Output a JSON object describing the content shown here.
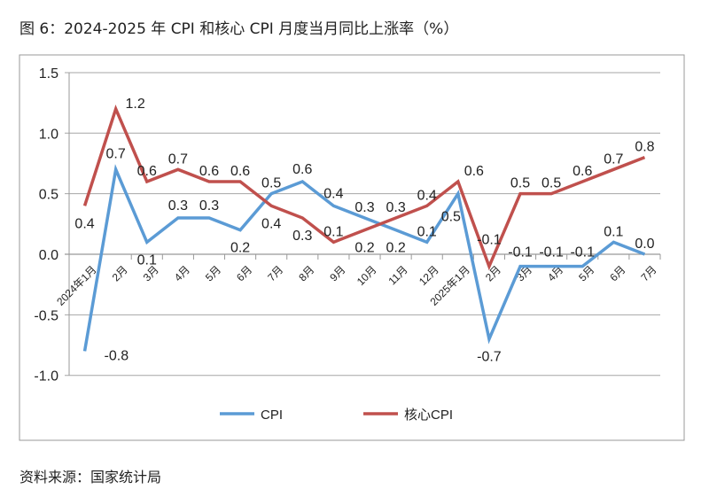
{
  "title": "图 6：2024-2025 年 CPI 和核心 CPI 月度当月同比上涨率（%）",
  "source": "资料来源：国家统计局",
  "chart_data": {
    "type": "line",
    "title": "图 6：2024-2025 年 CPI 和核心 CPI 月度当月同比上涨率（%）",
    "categories": [
      "2024年1月",
      "2月",
      "3月",
      "4月",
      "5月",
      "6月",
      "7月",
      "8月",
      "9月",
      "10月",
      "11月",
      "12月",
      "2025年1月",
      "2月",
      "3月",
      "4月",
      "5月",
      "6月",
      "7月"
    ],
    "ylim": [
      -1.0,
      1.5
    ],
    "yticks": [
      "-1.0",
      "-0.5",
      "0.0",
      "0.5",
      "1.0",
      "1.5"
    ],
    "grid": true,
    "legend": "bottom",
    "series": [
      {
        "name": "CPI",
        "color": "#5B9BD5",
        "values": [
          -0.8,
          0.7,
          0.1,
          0.3,
          0.3,
          0.2,
          0.5,
          0.6,
          0.4,
          0.3,
          0.2,
          0.1,
          0.5,
          -0.7,
          -0.1,
          -0.1,
          -0.1,
          0.1,
          0.0
        ]
      },
      {
        "name": "核心CPI",
        "color": "#C0504D",
        "values": [
          0.4,
          1.2,
          0.6,
          0.7,
          0.6,
          0.6,
          0.4,
          0.3,
          0.1,
          0.2,
          0.3,
          0.4,
          0.6,
          -0.1,
          0.5,
          0.5,
          0.6,
          0.7,
          0.8
        ]
      }
    ]
  }
}
